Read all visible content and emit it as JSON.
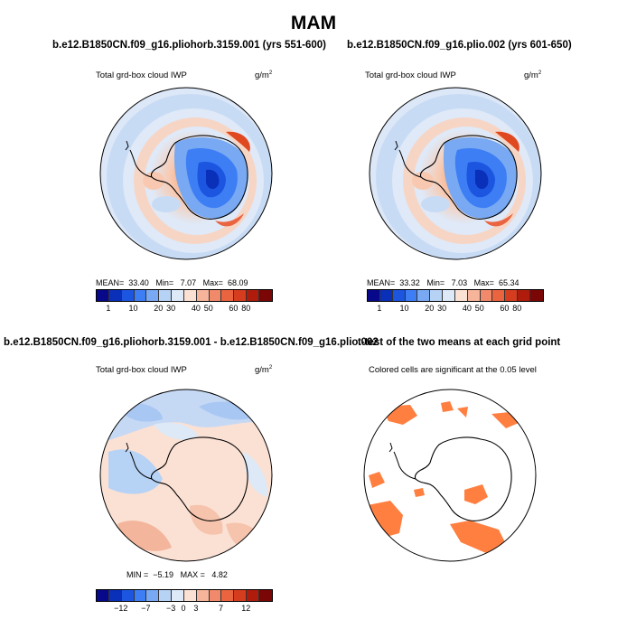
{
  "main_title": "MAM",
  "panels": [
    {
      "title": "b.e12.B1850CN.f09_g16.pliohorb.3159.001 (yrs 551-600)",
      "subtitle": "Total grd-box cloud IWP",
      "units": "g/m",
      "units_exp": "2",
      "stats": {
        "mean_label": "MEAN=",
        "mean": "33.40",
        "min_label": "Min=",
        "min": "7.07",
        "max_label": "Max=",
        "max": "68.09"
      }
    },
    {
      "title": "b.e12.B1850CN.f09_g16.plio.002 (yrs 601-650)",
      "subtitle": "Total grd-box cloud IWP",
      "units": "g/m",
      "units_exp": "2",
      "stats": {
        "mean_label": "MEAN=",
        "mean": "33.32",
        "min_label": "Min=",
        "min": "7.03",
        "max_label": "Max=",
        "max": "65.34"
      }
    },
    {
      "title": "b.e12.B1850CN.f09_g16.pliohorb.3159.001 - b.e12.B1850CN.f09_g16.plio.002",
      "subtitle": "Total grd-box cloud IWP",
      "units": "g/m",
      "units_exp": "2",
      "stats": {
        "min_label": "MIN =",
        "min": "−5.19",
        "max_label": "MAX =",
        "max": "4.82"
      }
    },
    {
      "title": "t-test of the two means at each grid point",
      "subtitle": "Colored cells are significant at the 0.05 level"
    }
  ],
  "colorbar_abs": {
    "colors": [
      "#08088a",
      "#0a2fb8",
      "#1c55e0",
      "#3d7ef5",
      "#78a9f2",
      "#b6d2f5",
      "#dde9f7",
      "#fbe1d4",
      "#f6b49a",
      "#f08a6a",
      "#ea6440",
      "#d63c1e",
      "#b01c0c",
      "#7a0606"
    ],
    "ticks": [
      "1",
      "10",
      "20",
      "30",
      "40",
      "50",
      "60",
      "80"
    ]
  },
  "colorbar_diff": {
    "colors": [
      "#08088a",
      "#0a2fb8",
      "#1c55e0",
      "#3d7ef5",
      "#78a9f2",
      "#b6d2f5",
      "#dde9f7",
      "#fbe1d4",
      "#f6b49a",
      "#f08a6a",
      "#ea6440",
      "#d63c1e",
      "#b01c0c",
      "#7a0606"
    ],
    "ticks": [
      "−12",
      "−7",
      "−3",
      "0",
      "3",
      "7",
      "12"
    ]
  },
  "colors": {
    "sig_fill": "#ff7f40",
    "coast": "#000000"
  }
}
